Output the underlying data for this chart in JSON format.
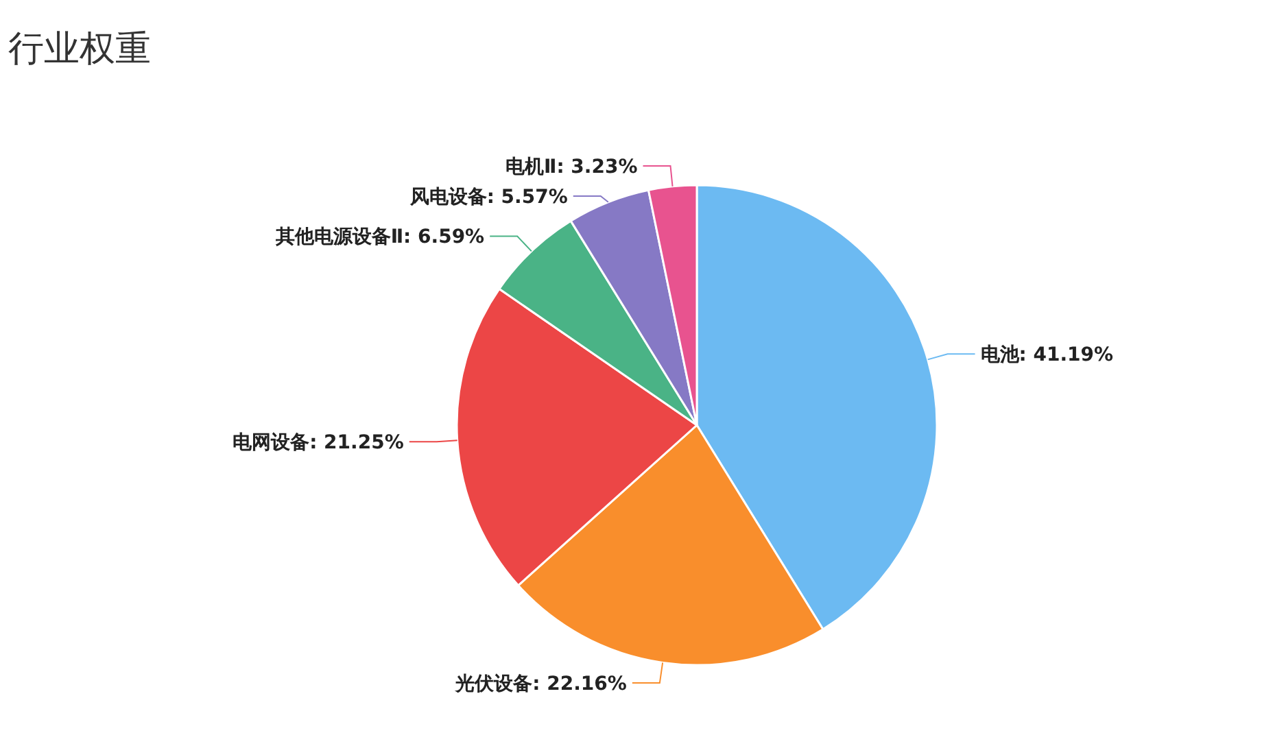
{
  "chart_data": {
    "type": "pie",
    "title": "行业权重",
    "categories": [
      "电池",
      "光伏设备",
      "电网设备",
      "其他电源设备Ⅱ",
      "风电设备",
      "电机Ⅱ"
    ],
    "values": [
      41.19,
      22.16,
      21.25,
      6.59,
      5.57,
      3.23
    ],
    "colors": [
      "#6cbaf2",
      "#f98e2c",
      "#ec4646",
      "#4ab386",
      "#8679c5",
      "#e8538f"
    ],
    "value_labels": [
      ": 41.19%",
      ": 22.16%",
      ": 21.25%",
      ": 6.59%",
      ": 5.57%",
      ": 3.23%"
    ]
  }
}
